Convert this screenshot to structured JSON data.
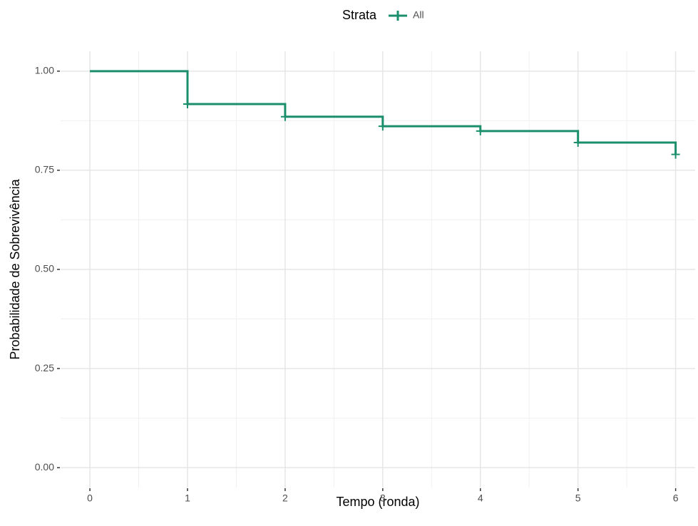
{
  "chart_data": {
    "type": "step",
    "x_label": "Tempo (ronda)",
    "y_label": "Probabilidade de Sobrevivência",
    "legend_title": "Strata",
    "legend_position": "top",
    "x": [
      0,
      1,
      2,
      3,
      4,
      5,
      6
    ],
    "series": [
      {
        "name": "All",
        "color": "#1b8f6c",
        "values": [
          1.0,
          0.917,
          0.885,
          0.861,
          0.849,
          0.82,
          0.79
        ]
      }
    ],
    "censor_x": [
      1,
      2,
      3,
      4,
      5,
      6
    ],
    "xlim": [
      -0.3,
      6.2
    ],
    "xticks": [
      0,
      1,
      2,
      3,
      4,
      5,
      6
    ],
    "ylim": [
      -0.05,
      1.05
    ],
    "yticks": [
      {
        "value": 0,
        "label": "0.00"
      },
      {
        "value": 0.25,
        "label": "0.25"
      },
      {
        "value": 0.5,
        "label": "0.50"
      },
      {
        "value": 0.75,
        "label": "0.75"
      },
      {
        "value": 1,
        "label": "1.00"
      }
    ],
    "grid": true
  }
}
